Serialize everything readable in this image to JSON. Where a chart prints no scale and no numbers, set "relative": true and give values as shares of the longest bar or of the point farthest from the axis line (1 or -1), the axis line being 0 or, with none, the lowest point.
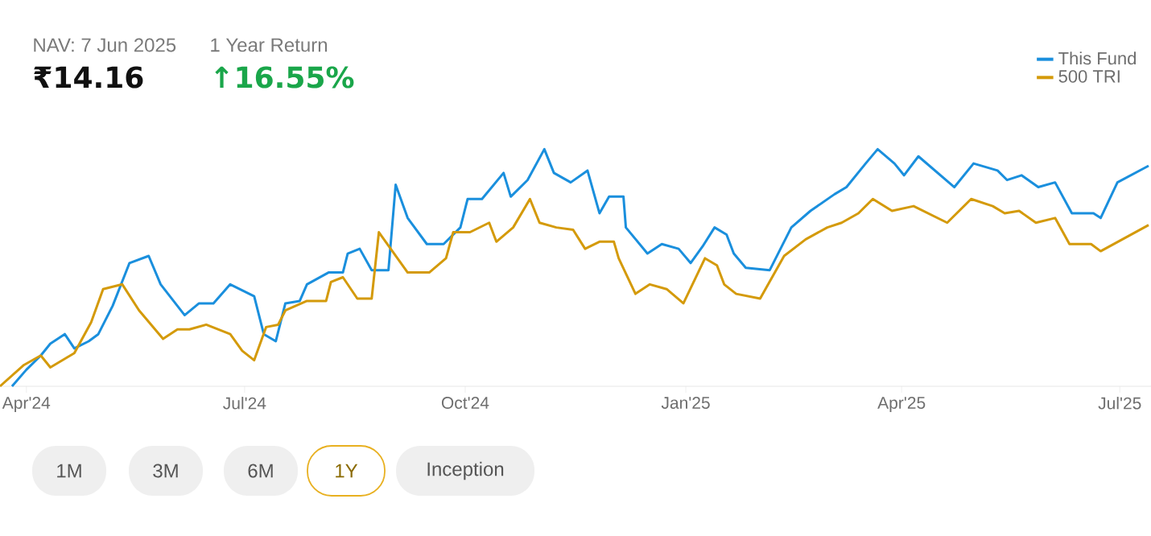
{
  "chart_data": {
    "type": "line",
    "relative": true,
    "legend": "top right",
    "grid": false,
    "marker": "none",
    "line_style": "solid",
    "xlim": [
      "2024-03-21",
      "2025-07-14"
    ],
    "xticks": [
      {
        "value": "2024-04-01",
        "label": "Apr'24"
      },
      {
        "value": "2024-07-01",
        "label": "Jul'24"
      },
      {
        "value": "2024-10-01",
        "label": "Oct'24"
      },
      {
        "value": "2025-01-01",
        "label": "Jan'25"
      },
      {
        "value": "2025-04-01",
        "label": "Apr'25"
      },
      {
        "value": "2025-07-01",
        "label": "Jul'25"
      }
    ],
    "annotations": [
      "NAV: 7 Jun 2025",
      "₹14.16",
      "1 Year Return",
      "↑16.55%",
      "1M",
      "3M",
      "6M",
      "1Y",
      "Inception"
    ],
    "series": [
      {
        "name": "This Fund",
        "color": "#1a8fdd",
        "x": [
          "2024-03-26",
          "2024-04-01",
          "2024-04-07",
          "2024-04-11",
          "2024-04-17",
          "2024-04-21",
          "2024-04-27",
          "2024-05-01",
          "2024-05-07",
          "2024-05-14",
          "2024-05-22",
          "2024-05-27",
          "2024-06-06",
          "2024-06-12",
          "2024-06-18",
          "2024-06-25",
          "2024-07-05",
          "2024-07-09",
          "2024-07-14",
          "2024-07-18",
          "2024-07-24",
          "2024-07-27",
          "2024-08-05",
          "2024-08-11",
          "2024-08-13",
          "2024-08-18",
          "2024-08-23",
          "2024-08-30",
          "2024-09-02",
          "2024-09-07",
          "2024-09-15",
          "2024-09-22",
          "2024-09-29",
          "2024-10-02",
          "2024-10-08",
          "2024-10-17",
          "2024-10-20",
          "2024-10-27",
          "2024-11-03",
          "2024-11-07",
          "2024-11-14",
          "2024-11-21",
          "2024-11-26",
          "2024-11-30",
          "2024-12-06",
          "2024-12-07",
          "2024-12-16",
          "2024-12-22",
          "2024-12-29",
          "2025-01-03",
          "2025-01-08",
          "2025-01-13",
          "2025-01-18",
          "2025-01-21",
          "2025-01-26",
          "2025-02-05",
          "2025-02-14",
          "2025-02-22",
          "2025-03-04",
          "2025-03-09",
          "2025-03-17",
          "2025-03-22",
          "2025-03-29",
          "2025-04-02",
          "2025-04-08",
          "2025-04-23",
          "2025-05-01",
          "2025-05-11",
          "2025-05-15",
          "2025-05-21",
          "2025-05-28",
          "2025-06-04",
          "2025-06-11",
          "2025-06-20",
          "2025-06-23",
          "2025-06-30",
          "2025-07-13"
        ],
        "values": [
          0.0,
          0.07,
          0.13,
          0.18,
          0.22,
          0.16,
          0.19,
          0.22,
          0.34,
          0.52,
          0.55,
          0.43,
          0.3,
          0.35,
          0.35,
          0.43,
          0.38,
          0.22,
          0.19,
          0.35,
          0.36,
          0.43,
          0.48,
          0.48,
          0.56,
          0.58,
          0.49,
          0.49,
          0.85,
          0.71,
          0.6,
          0.6,
          0.67,
          0.79,
          0.79,
          0.9,
          0.8,
          0.87,
          1.0,
          0.9,
          0.86,
          0.91,
          0.73,
          0.8,
          0.8,
          0.67,
          0.56,
          0.6,
          0.58,
          0.52,
          0.59,
          0.67,
          0.64,
          0.56,
          0.5,
          0.49,
          0.67,
          0.74,
          0.81,
          0.84,
          0.94,
          1.0,
          0.94,
          0.89,
          0.97,
          0.84,
          0.94,
          0.91,
          0.87,
          0.89,
          0.84,
          0.86,
          0.73,
          0.73,
          0.71,
          0.86,
          0.93
        ]
      },
      {
        "name": "500 TRI",
        "color": "#d49a0a",
        "x": [
          "2024-03-21",
          "2024-03-31",
          "2024-04-07",
          "2024-04-11",
          "2024-04-21",
          "2024-04-28",
          "2024-05-03",
          "2024-05-11",
          "2024-05-18",
          "2024-05-28",
          "2024-06-03",
          "2024-06-08",
          "2024-06-15",
          "2024-06-25",
          "2024-06-30",
          "2024-07-05",
          "2024-07-10",
          "2024-07-15",
          "2024-07-18",
          "2024-07-27",
          "2024-08-04",
          "2024-08-06",
          "2024-08-11",
          "2024-08-17",
          "2024-08-23",
          "2024-08-26",
          "2024-09-07",
          "2024-09-16",
          "2024-09-23",
          "2024-09-26",
          "2024-10-03",
          "2024-10-11",
          "2024-10-14",
          "2024-10-21",
          "2024-10-28",
          "2024-11-01",
          "2024-11-08",
          "2024-11-15",
          "2024-11-20",
          "2024-11-26",
          "2024-12-02",
          "2024-12-04",
          "2024-12-11",
          "2024-12-17",
          "2024-12-24",
          "2024-12-31",
          "2025-01-09",
          "2025-01-14",
          "2025-01-17",
          "2025-01-22",
          "2025-02-01",
          "2025-02-11",
          "2025-02-20",
          "2025-03-01",
          "2025-03-07",
          "2025-03-14",
          "2025-03-20",
          "2025-03-28",
          "2025-04-06",
          "2025-04-20",
          "2025-04-30",
          "2025-05-09",
          "2025-05-14",
          "2025-05-20",
          "2025-05-27",
          "2025-06-04",
          "2025-06-10",
          "2025-06-19",
          "2025-06-23",
          "2025-07-13"
        ],
        "values": [
          0.0,
          0.09,
          0.13,
          0.08,
          0.14,
          0.27,
          0.41,
          0.43,
          0.32,
          0.2,
          0.24,
          0.24,
          0.26,
          0.22,
          0.15,
          0.11,
          0.25,
          0.26,
          0.32,
          0.36,
          0.36,
          0.44,
          0.46,
          0.37,
          0.37,
          0.65,
          0.48,
          0.48,
          0.54,
          0.65,
          0.65,
          0.69,
          0.61,
          0.67,
          0.79,
          0.69,
          0.67,
          0.66,
          0.58,
          0.61,
          0.61,
          0.54,
          0.39,
          0.43,
          0.41,
          0.35,
          0.54,
          0.51,
          0.43,
          0.39,
          0.37,
          0.55,
          0.62,
          0.67,
          0.69,
          0.73,
          0.79,
          0.74,
          0.76,
          0.69,
          0.79,
          0.76,
          0.73,
          0.74,
          0.69,
          0.71,
          0.6,
          0.6,
          0.57,
          0.68
        ]
      }
    ]
  }
}
